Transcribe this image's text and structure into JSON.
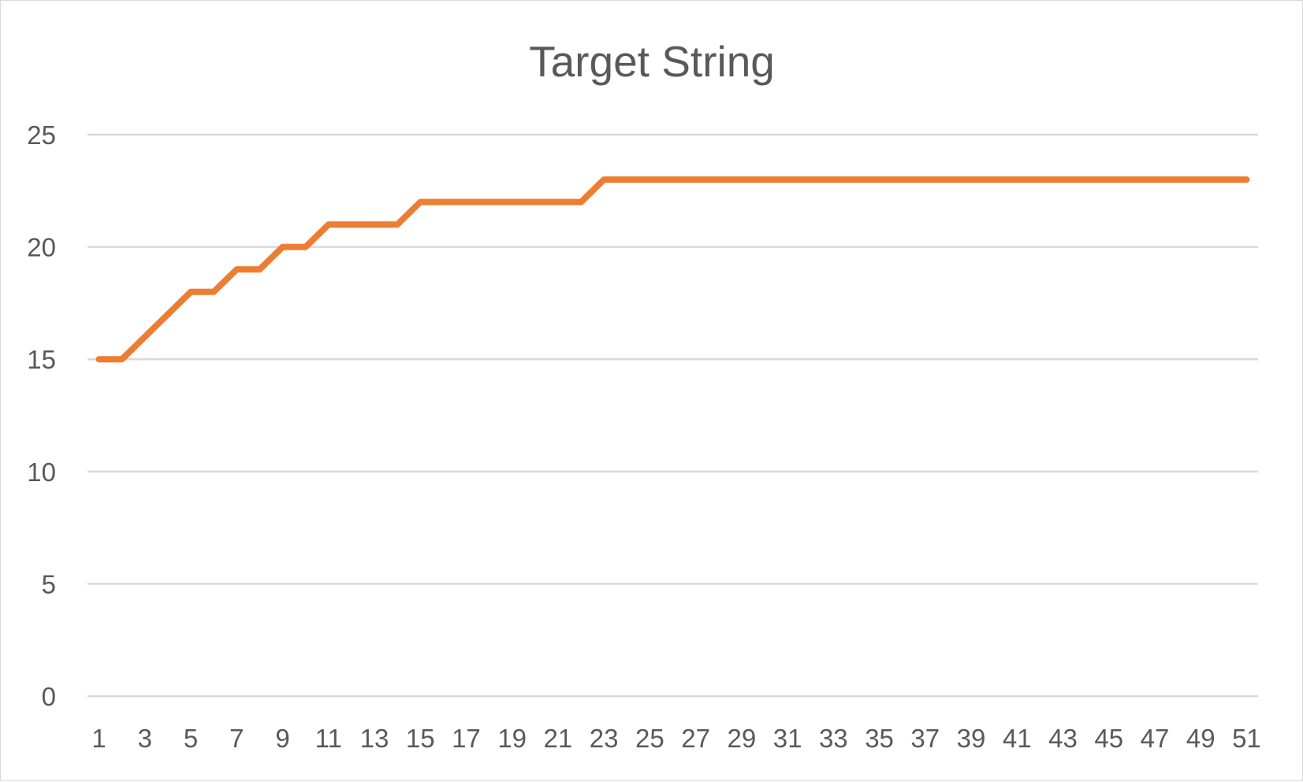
{
  "chart_data": {
    "type": "line",
    "title": "Target String",
    "xlabel": "",
    "ylabel": "",
    "x": [
      1,
      2,
      3,
      4,
      5,
      6,
      7,
      8,
      9,
      10,
      11,
      12,
      13,
      14,
      15,
      16,
      17,
      18,
      19,
      20,
      21,
      22,
      23,
      24,
      25,
      26,
      27,
      28,
      29,
      30,
      31,
      32,
      33,
      34,
      35,
      36,
      37,
      38,
      39,
      40,
      41,
      42,
      43,
      44,
      45,
      46,
      47,
      48,
      49,
      50,
      51
    ],
    "x_tick_labels": [
      "1",
      "3",
      "5",
      "7",
      "9",
      "11",
      "13",
      "15",
      "17",
      "19",
      "21",
      "23",
      "25",
      "27",
      "29",
      "31",
      "33",
      "35",
      "37",
      "39",
      "41",
      "43",
      "45",
      "47",
      "49",
      "51"
    ],
    "y_tick_labels": [
      "0",
      "5",
      "10",
      "15",
      "20",
      "25"
    ],
    "ylim": [
      0,
      25
    ],
    "grid": true,
    "legend": "none",
    "series": [
      {
        "color": "#ED7D31",
        "values": [
          15,
          15,
          16,
          17,
          18,
          18,
          19,
          19,
          20,
          20,
          21,
          21,
          21,
          21,
          22,
          22,
          22,
          22,
          22,
          22,
          22,
          22,
          23,
          23,
          23,
          23,
          23,
          23,
          23,
          23,
          23,
          23,
          23,
          23,
          23,
          23,
          23,
          23,
          23,
          23,
          23,
          23,
          23,
          23,
          23,
          23,
          23,
          23,
          23,
          23,
          23
        ]
      }
    ]
  }
}
